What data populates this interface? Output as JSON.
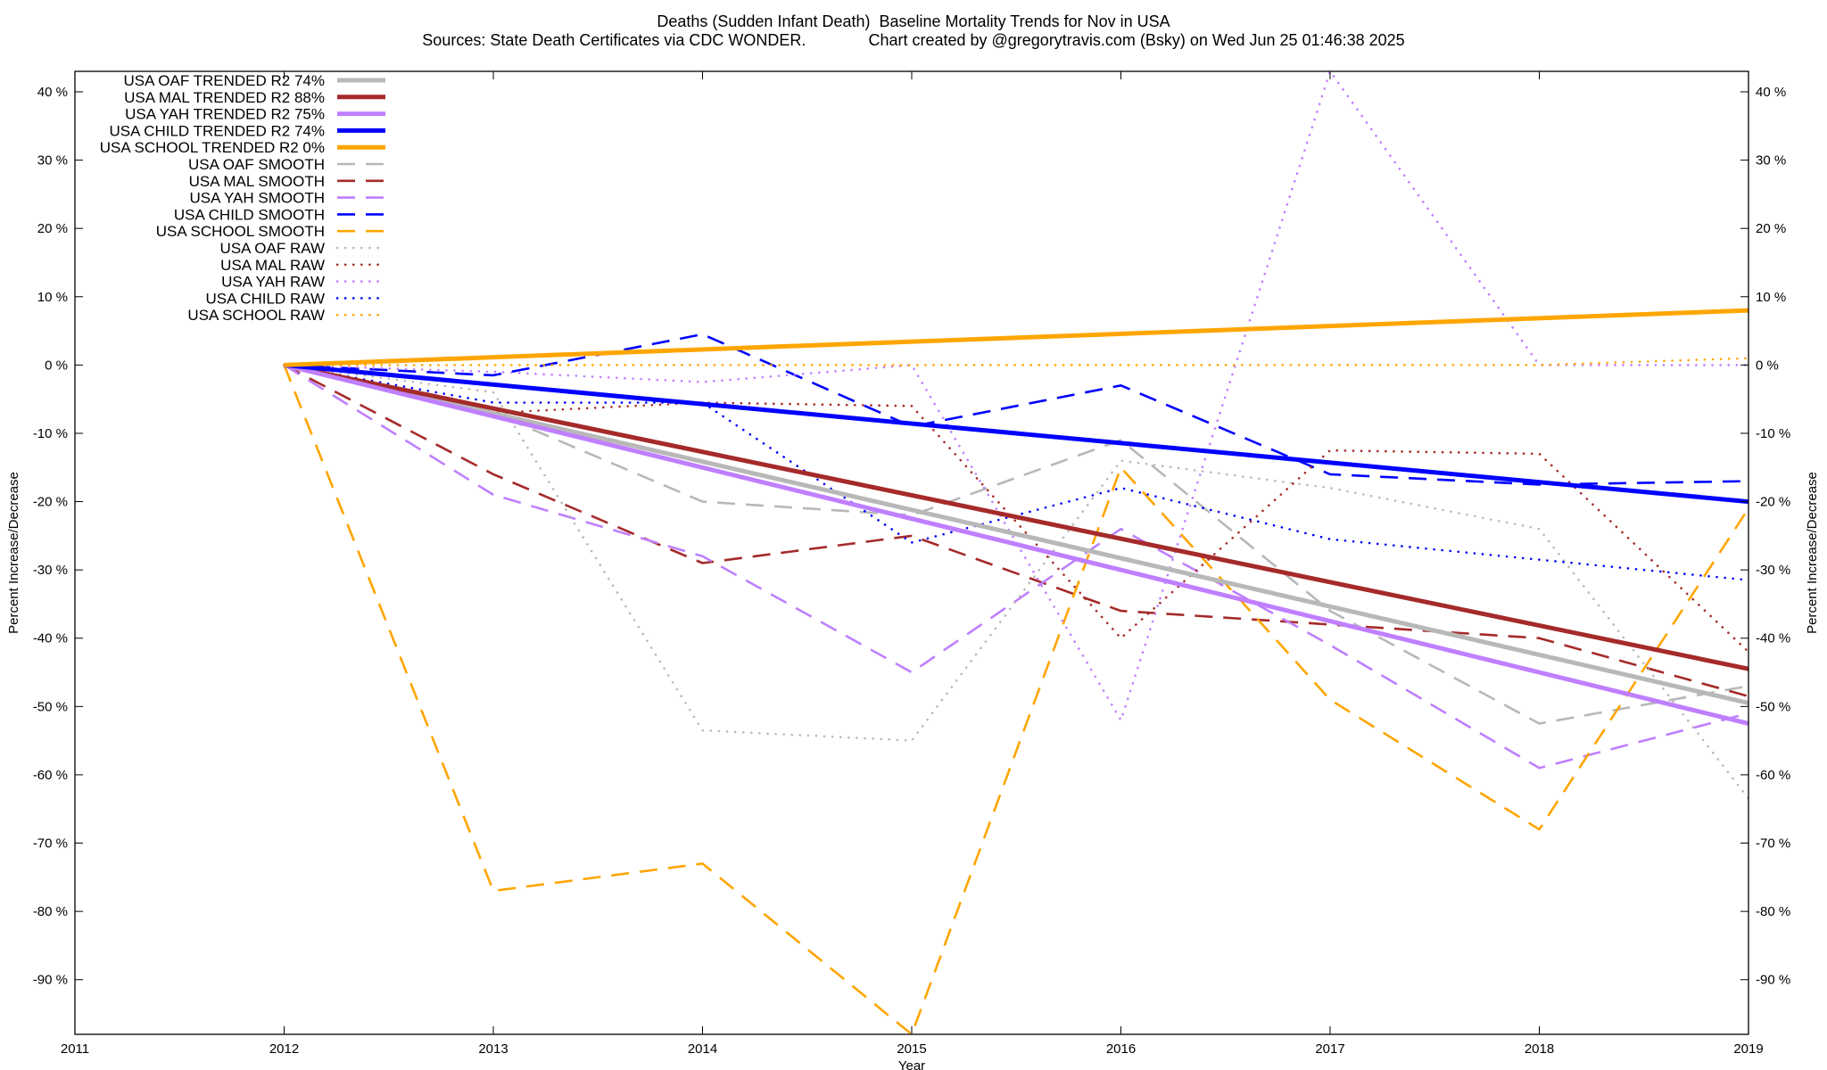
{
  "header": {
    "title_line1": "Deaths (Sudden Infant Death)  Baseline Mortality Trends for Nov in USA",
    "title_line2": "Sources: State Death Certificates via CDC WONDER.              Chart created by @gregorytravis.com (Bsky) on Wed Jun 25 01:46:38 2025"
  },
  "chart_data": {
    "type": "line",
    "xlabel": "Year",
    "ylabel": "Percent Increase/Decrease",
    "xlim": [
      2011,
      2019
    ],
    "ylim": [
      -98,
      43
    ],
    "x_ticks": [
      2011,
      2012,
      2013,
      2014,
      2015,
      2016,
      2017,
      2018,
      2019
    ],
    "y_ticks": [
      40,
      30,
      20,
      10,
      0,
      -10,
      -20,
      -30,
      -40,
      -50,
      -60,
      -70,
      -80,
      -90
    ],
    "y_tick_suffix": " %",
    "grid": false,
    "legend_position": "top-left",
    "colors": {
      "oaf": "#b8b8b8",
      "mal": "#a52a2a",
      "yah": "#bf7fff",
      "child": "#0000ff",
      "school": "#ffa500"
    },
    "series": [
      {
        "name": "USA OAF TRENDED R2  74%",
        "style": "solid",
        "color": "#b8b8b8",
        "x": [
          2012,
          2019
        ],
        "y": [
          0,
          -49.5
        ]
      },
      {
        "name": "USA MAL TRENDED R2  88%",
        "style": "solid",
        "color": "#a52a2a",
        "x": [
          2012,
          2019
        ],
        "y": [
          0,
          -44.5
        ]
      },
      {
        "name": "USA YAH TRENDED R2  75%",
        "style": "solid",
        "color": "#bf7fff",
        "x": [
          2012,
          2019
        ],
        "y": [
          0,
          -52.5
        ]
      },
      {
        "name": "USA CHILD TRENDED R2  74%",
        "style": "solid",
        "color": "#0000ff",
        "x": [
          2012,
          2019
        ],
        "y": [
          0,
          -20
        ]
      },
      {
        "name": "USA SCHOOL TRENDED R2   0%",
        "style": "solid",
        "color": "#ffa500",
        "x": [
          2012,
          2019
        ],
        "y": [
          0,
          8
        ]
      },
      {
        "name": "USA OAF SMOOTH",
        "style": "dashed",
        "color": "#b8b8b8",
        "x": [
          2012,
          2013,
          2014,
          2015,
          2016,
          2017,
          2018,
          2019
        ],
        "y": [
          0,
          -7,
          -20,
          -22,
          -11,
          -36,
          -52.5,
          -47
        ]
      },
      {
        "name": "USA MAL SMOOTH",
        "style": "dashed",
        "color": "#a52a2a",
        "x": [
          2012,
          2013,
          2014,
          2015,
          2016,
          2017,
          2018,
          2019
        ],
        "y": [
          0,
          -16,
          -29,
          -25,
          -36,
          -38,
          -40,
          -48.5
        ]
      },
      {
        "name": "USA YAH SMOOTH",
        "style": "dashed",
        "color": "#bf7fff",
        "x": [
          2012,
          2013,
          2014,
          2015,
          2016,
          2017,
          2018,
          2019
        ],
        "y": [
          0,
          -19,
          -28,
          -45,
          -24,
          -41,
          -59,
          -51
        ]
      },
      {
        "name": "USA CHILD SMOOTH",
        "style": "dashed",
        "color": "#0000ff",
        "x": [
          2012,
          2013,
          2014,
          2015,
          2016,
          2017,
          2018,
          2019
        ],
        "y": [
          0,
          -1.5,
          4.5,
          -9,
          -3,
          -16,
          -17.5,
          -17
        ]
      },
      {
        "name": "USA SCHOOL SMOOTH",
        "style": "dashed",
        "color": "#ffa500",
        "x": [
          2012,
          2013,
          2014,
          2015,
          2016,
          2017,
          2018,
          2019
        ],
        "y": [
          0,
          -77,
          -73,
          -98,
          -15,
          -49,
          -68,
          -21
        ]
      },
      {
        "name": "USA OAF RAW",
        "style": "dotted",
        "color": "#b8b8b8",
        "x": [
          2012,
          2013,
          2014,
          2015,
          2016,
          2017,
          2018,
          2019
        ],
        "y": [
          0,
          -4,
          -53.5,
          -55,
          -14,
          -18,
          -24,
          -63.5
        ]
      },
      {
        "name": "USA MAL RAW",
        "style": "dotted",
        "color": "#a52a2a",
        "x": [
          2012,
          2013,
          2014,
          2015,
          2016,
          2017,
          2018,
          2019
        ],
        "y": [
          0,
          -7,
          -5.5,
          -6,
          -40,
          -12.5,
          -13,
          -42
        ]
      },
      {
        "name": "USA YAH RAW",
        "style": "dotted",
        "color": "#bf7fff",
        "x": [
          2012,
          2013,
          2014,
          2015,
          2016,
          2017,
          2018,
          2019
        ],
        "y": [
          0,
          -1,
          -2.5,
          0,
          -52,
          43,
          0,
          0
        ]
      },
      {
        "name": "USA CHILD RAW",
        "style": "dotted",
        "color": "#0000ff",
        "x": [
          2012,
          2013,
          2014,
          2015,
          2016,
          2017,
          2018,
          2019
        ],
        "y": [
          0,
          -5.5,
          -5.5,
          -26,
          -18,
          -25.5,
          -28.5,
          -31.5
        ]
      },
      {
        "name": "USA SCHOOL RAW",
        "style": "dotted",
        "color": "#ffa500",
        "x": [
          2012,
          2013,
          2014,
          2015,
          2016,
          2017,
          2018,
          2019
        ],
        "y": [
          0,
          0,
          0,
          0,
          0,
          0,
          0,
          1
        ]
      }
    ]
  }
}
